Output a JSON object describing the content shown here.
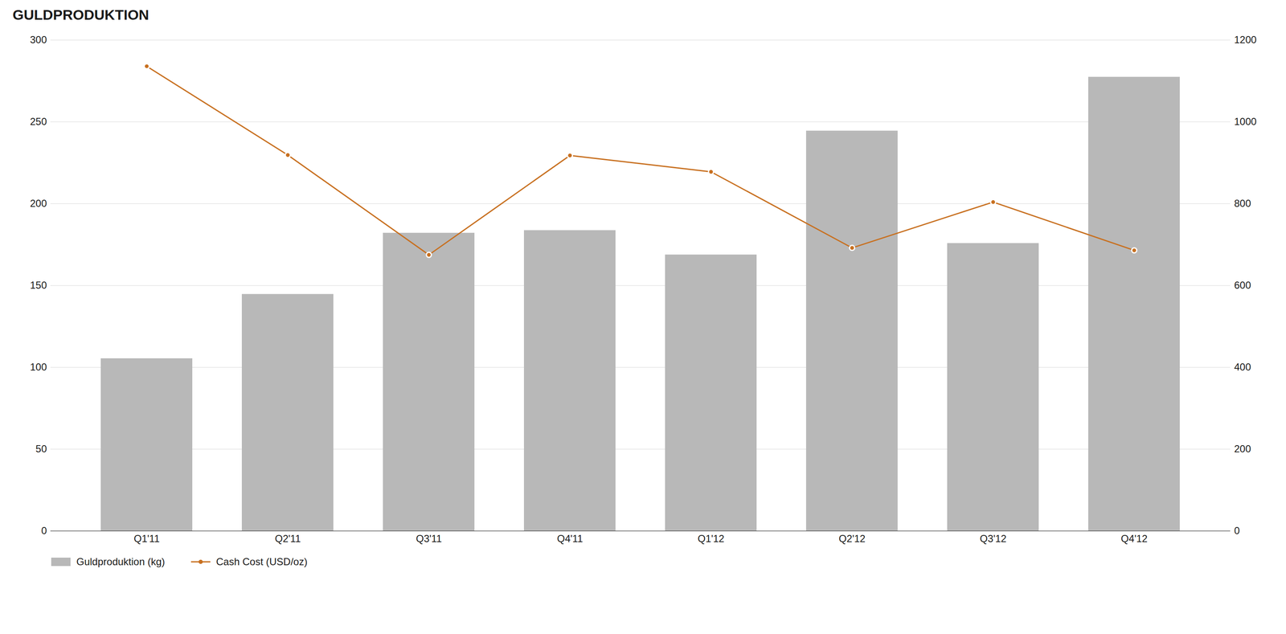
{
  "chart_data": {
    "type": "bar",
    "title": "GULDPRODUKTION",
    "categories": [
      "Q1'11",
      "Q2'11",
      "Q3'11",
      "Q4'11",
      "Q1'12",
      "Q2'12",
      "Q3'12",
      "Q4'12"
    ],
    "series": [
      {
        "name": "Guldproduktion (kg)",
        "type": "bar",
        "color": "#b8b8b8",
        "values": [
          105.4,
          144.7,
          182.1,
          183.7,
          168.8,
          244.5,
          175.8,
          277.4
        ]
      },
      {
        "name": "Cash Cost (USD/oz)",
        "type": "line",
        "color": "#c87020",
        "marker": "circle",
        "axis": "y2",
        "values": [
          1136,
          919,
          675,
          918,
          878,
          692,
          804,
          686
        ]
      }
    ],
    "ylim": [
      0,
      300
    ],
    "yticks": [
      0,
      50,
      100,
      150,
      200,
      250,
      300
    ],
    "y2lim": [
      0,
      1200
    ],
    "y2ticks": [
      0,
      200,
      400,
      600,
      800,
      1000,
      1200
    ],
    "grid": true,
    "legend": "bottom"
  }
}
